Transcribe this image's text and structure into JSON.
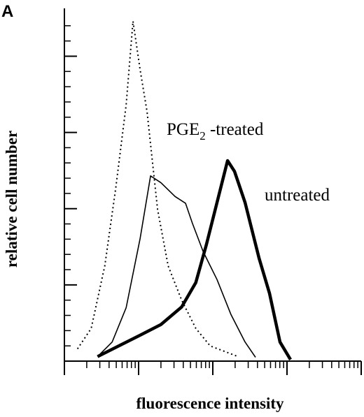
{
  "chart_data": {
    "type": "line",
    "panel_label": "A",
    "xlabel": "fluorescence intensity",
    "ylabel": "relative cell number",
    "xscale": "log",
    "xlim": [
      1,
      10000
    ],
    "xticks": [
      1,
      10,
      100,
      1000,
      10000
    ],
    "xminorticks": [
      2,
      3,
      4,
      5,
      6,
      7,
      8,
      9,
      20,
      30,
      40,
      50,
      60,
      70,
      80,
      90,
      200,
      300,
      400,
      500,
      600,
      700,
      800,
      900,
      2000,
      3000,
      4000,
      5000,
      6000,
      7000,
      8000,
      9000
    ],
    "ylim": [
      0,
      460
    ],
    "yticks": [
      100,
      200,
      300,
      400
    ],
    "yminorticks": [
      20,
      40,
      60,
      80,
      120,
      140,
      160,
      180,
      220,
      240,
      260,
      280,
      320,
      340,
      360,
      380,
      420,
      440
    ],
    "annotations": [
      {
        "parts": [
          "PGE",
          "2",
          " -treated"
        ]
      },
      {
        "parts": [
          "untreated"
        ]
      }
    ],
    "series": [
      {
        "color": "#000000",
        "dash": "dotted",
        "width": 2,
        "x": [
          1.5,
          2.3,
          3.5,
          4.9,
          6.8,
          8.4,
          10.5,
          13,
          18,
          25,
          38,
          59,
          92,
          219
        ],
        "values": [
          16,
          43,
          125,
          226,
          336,
          446,
          382,
          327,
          199,
          125,
          80,
          43,
          20,
          6
        ]
      },
      {
        "color": "#000000",
        "dash": "solid",
        "width": 1.6,
        "x": [
          2.8,
          4.4,
          6.8,
          10.5,
          14.5,
          20,
          31,
          43,
          53,
          74,
          114,
          176,
          272,
          376
        ],
        "values": [
          6,
          25,
          70,
          161,
          243,
          234,
          216,
          207,
          181,
          144,
          107,
          61,
          25,
          5
        ]
      },
      {
        "color": "#000000",
        "dash": "solid",
        "width": 4.5,
        "x": [
          2.8,
          5.4,
          10.5,
          20,
          38,
          59,
          82,
          114,
          158,
          196,
          272,
          420,
          581,
          805,
          1114
        ],
        "values": [
          6,
          20,
          34,
          48,
          71,
          103,
          153,
          208,
          263,
          249,
          208,
          135,
          89,
          25,
          2
        ]
      }
    ]
  }
}
